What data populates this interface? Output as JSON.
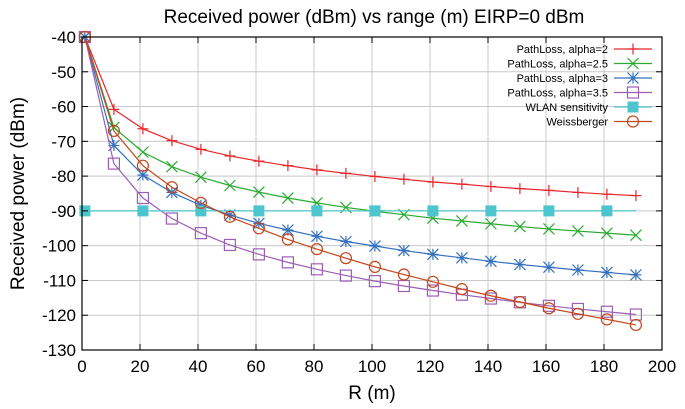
{
  "chart_data": {
    "type": "line",
    "title": "Received power (dBm) vs range (m) EIRP=0 dBm",
    "xlabel": "R (m)",
    "ylabel": "Received power (dBm)",
    "xlim": [
      0,
      200
    ],
    "ylim": [
      -130,
      -40
    ],
    "xticks": [
      0,
      20,
      40,
      60,
      80,
      100,
      120,
      140,
      160,
      180,
      200
    ],
    "yticks": [
      -40,
      -50,
      -60,
      -70,
      -80,
      -90,
      -100,
      -110,
      -120,
      -130
    ],
    "grid": true,
    "legend_position": "top-right",
    "x": [
      1,
      11,
      21,
      31,
      41,
      51,
      61,
      71,
      81,
      91,
      101,
      111,
      121,
      131,
      141,
      151,
      161,
      171,
      181,
      191
    ],
    "series": [
      {
        "name": "PathLoss, alpha=2",
        "color": "#e8262b",
        "marker": "plus",
        "values": [
          -40.0,
          -60.8,
          -66.4,
          -69.8,
          -72.3,
          -74.2,
          -75.7,
          -77.0,
          -78.2,
          -79.2,
          -80.1,
          -80.9,
          -81.7,
          -82.3,
          -83.0,
          -83.6,
          -84.1,
          -84.7,
          -85.2,
          -85.6
        ]
      },
      {
        "name": "PathLoss, alpha=2.5",
        "color": "#2bab30",
        "marker": "cross",
        "values": [
          -40.0,
          -66.0,
          -73.1,
          -77.3,
          -80.3,
          -82.7,
          -84.6,
          -86.3,
          -87.7,
          -89.0,
          -90.1,
          -91.1,
          -92.1,
          -92.9,
          -93.7,
          -94.5,
          -95.2,
          -95.8,
          -96.4,
          -97.0
        ]
      },
      {
        "name": "PathLoss, alpha=3",
        "color": "#3470be",
        "marker": "star",
        "values": [
          -40.0,
          -71.2,
          -79.7,
          -84.7,
          -88.4,
          -91.2,
          -93.6,
          -95.5,
          -97.3,
          -98.8,
          -100.1,
          -101.4,
          -102.5,
          -103.5,
          -104.5,
          -105.4,
          -106.2,
          -107.0,
          -107.7,
          -108.4
        ]
      },
      {
        "name": "PathLoss, alpha=3.5",
        "color": "#9c5fb5",
        "marker": "open-square",
        "values": [
          -40.0,
          -76.4,
          -86.3,
          -92.2,
          -96.4,
          -99.8,
          -102.5,
          -104.8,
          -106.8,
          -108.6,
          -110.2,
          -111.6,
          -112.9,
          -114.1,
          -115.2,
          -116.3,
          -117.3,
          -118.2,
          -119.0,
          -119.8
        ]
      },
      {
        "name": "WLAN sensitivity",
        "color": "#4dc5ce",
        "marker": "filled-square",
        "values": [
          -90,
          -90,
          -90,
          -90,
          -90,
          -90,
          -90,
          -90,
          -90,
          -90,
          -90,
          -90,
          -90,
          -90,
          -90,
          -90,
          -90,
          -90,
          -90,
          -90
        ]
      },
      {
        "name": "Weissberger",
        "color": "#c4461c",
        "marker": "open-circle",
        "values": [
          -40.0,
          -67.0,
          -77.0,
          -83.2,
          -87.7,
          -91.7,
          -95.0,
          -98.2,
          -101.0,
          -103.6,
          -106.1,
          -108.3,
          -110.4,
          -112.5,
          -114.4,
          -116.2,
          -118.0,
          -119.6,
          -121.2,
          -122.8
        ]
      }
    ],
    "marker_x": [
      1,
      11,
      21,
      31,
      41,
      51,
      61,
      71,
      81,
      91,
      101,
      111,
      121,
      131,
      141,
      151,
      161,
      171,
      181,
      191
    ],
    "wlan_marker_x": [
      1,
      21,
      41,
      61,
      81,
      101,
      121,
      141,
      161,
      181
    ]
  }
}
